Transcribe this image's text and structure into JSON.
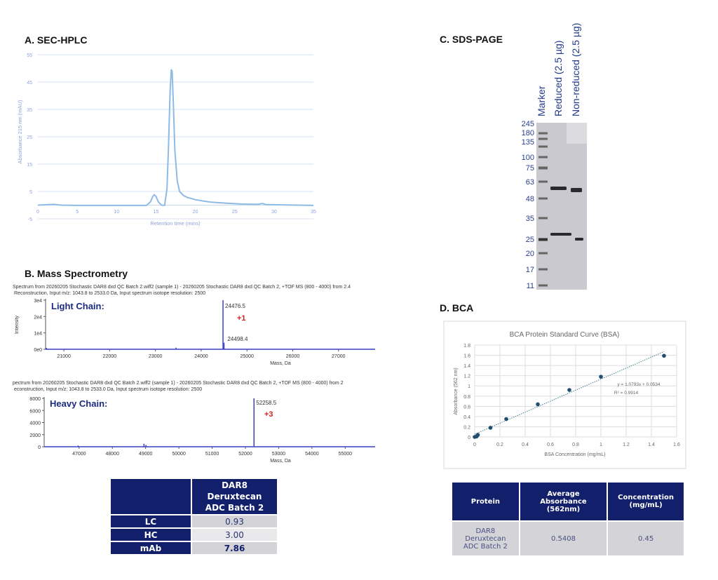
{
  "sections": {
    "a": "A. SEC-HPLC",
    "b": "B. Mass Spectrometry",
    "c": "C. SDS-PAGE",
    "d": "D. BCA"
  },
  "chart_data": [
    {
      "id": "sec-hplc",
      "type": "line",
      "xlabel": "Retention time (mins)",
      "ylabel": "Absorbance 215 nm (mAU)",
      "xlim": [
        0,
        35
      ],
      "ylim": [
        -5,
        55
      ],
      "xticks": [
        "0",
        "5",
        "10",
        "15",
        "20",
        "25",
        "30",
        "35"
      ],
      "yticks": [
        "55",
        "45",
        "35",
        "25",
        "15",
        "5",
        "-5"
      ],
      "grid": true,
      "color": "#8dbbe6",
      "x": [
        0,
        2,
        3,
        5,
        10,
        13.8,
        14.3,
        14.6,
        14.8,
        15.0,
        15.3,
        15.7,
        16.1,
        16.4,
        16.6,
        16.8,
        16.95,
        17.05,
        17.2,
        17.4,
        17.7,
        18.0,
        18.5,
        19,
        20,
        21,
        22,
        24,
        26,
        28,
        28.5,
        29,
        31,
        33,
        35
      ],
      "y": [
        0,
        0.3,
        0,
        -0.1,
        -0.1,
        -0.1,
        1.2,
        3.2,
        3.8,
        3.2,
        1.2,
        0,
        -0.1,
        6,
        22,
        42,
        49.5,
        49,
        38,
        20,
        9,
        5,
        3.5,
        2.8,
        2,
        1.5,
        1.1,
        0.7,
        0.4,
        0.3,
        0.6,
        0.2,
        0.1,
        0,
        -0.1
      ]
    },
    {
      "id": "light-chain",
      "type": "line",
      "header": [
        "Spectrum from 20260205 Stochastic DAR8 dxd QC Batch 2.wiff2 (sample 1) - 20260205 Stochastic DAR8 dxd QC Batch 2, +TOF MS (800 - 4000) from 2.4",
        "Reconstruction,  Input m/z: 1043.8 to 2533.0 Da, Input spectrum isotope resolution: 2500"
      ],
      "title": "Light Chain:",
      "xlabel": "Mass, Da",
      "ylabel": "Intensity",
      "xlim": [
        20600,
        27800
      ],
      "ylim": [
        0,
        30000
      ],
      "xticks": [
        "21000",
        "22000",
        "23000",
        "24000",
        "25000",
        "26000",
        "27000"
      ],
      "yticks": [
        "3e4",
        "2e4",
        "1e4",
        "0e0"
      ],
      "color": "#3a3fc4",
      "peaks": [
        {
          "x": 20620,
          "y": 800
        },
        {
          "x": 23450,
          "y": 1000
        },
        {
          "x": 24476.5,
          "y": 30000
        },
        {
          "x": 24498.4,
          "y": 4000
        }
      ],
      "peak_labels": [
        "24476.5",
        "24498.4"
      ],
      "annotation": "+1"
    },
    {
      "id": "heavy-chain",
      "type": "line",
      "header": [
        "pectrum from 20260205 Stochastic DAR8 dxd QC Batch 2.wiff2 (sample 1) - 20260205 Stochastic DAR8 dxd QC Batch 2, +TOF MS (800 - 4000) from 2",
        "econstruction,  Input m/z: 1043.8 to 2533.0 Da, Input spectrum isotope resolution: 2500"
      ],
      "title": "Heavy Chain:",
      "xlabel": "Mass, Da",
      "xlim": [
        45950,
        55900
      ],
      "ylim": [
        0,
        8000
      ],
      "xticks": [
        "47000",
        "48000",
        "49000",
        "50000",
        "51000",
        "52000",
        "53000",
        "54000",
        "55000"
      ],
      "yticks": [
        "8000",
        "6000",
        "4000",
        "2000",
        "0"
      ],
      "color": "#3a3fc4",
      "peaks": [
        {
          "x": 46970,
          "y": 200
        },
        {
          "x": 48950,
          "y": 500
        },
        {
          "x": 49010,
          "y": 300
        },
        {
          "x": 52258.5,
          "y": 8000
        }
      ],
      "peak_labels": [
        "52258.5"
      ],
      "annotation": "+3"
    },
    {
      "id": "bca",
      "type": "scatter",
      "title": "BCA Protein Standard Curve (BSA)",
      "xlabel": "BSA Concentration (mg/mL)",
      "ylabel": "Absorbance (562 nm)",
      "xlim": [
        0,
        1.6
      ],
      "ylim": [
        0,
        1.8
      ],
      "xticks": [
        "0",
        "0.2",
        "0.4",
        "0.6",
        "0.8",
        "1",
        "1.2",
        "1.4",
        "1.6"
      ],
      "yticks": [
        "0",
        "0.2",
        "0.4",
        "0.6",
        "0.8",
        "1",
        "1.2",
        "1.4",
        "1.6",
        "1.8"
      ],
      "grid": true,
      "color": "#1f4e6e",
      "x": [
        0,
        0.015,
        0.025,
        0.125,
        0.25,
        0.5,
        0.75,
        1.0,
        1.5
      ],
      "y": [
        0,
        0.01,
        0.04,
        0.18,
        0.35,
        0.64,
        0.92,
        1.18,
        1.59
      ],
      "trendline": {
        "slope": 1.0793,
        "intercept": 0.0534,
        "equation": "y = 1.0793x + 0.0534",
        "r2": "R² = 0.9914"
      }
    }
  ],
  "gel": {
    "lanes": [
      "Marker",
      "Reduced (2.5 µg)",
      "Non-reduced (2.5 µg)"
    ],
    "marker_kda": [
      "245",
      "180",
      "135",
      "100",
      "75",
      "63",
      "48",
      "35",
      "25",
      "20",
      "17",
      "11"
    ]
  },
  "dar_table": {
    "header": "DAR8 Deruxtecan ADC Batch 2",
    "rows": [
      {
        "label": "LC",
        "value": "0.93"
      },
      {
        "label": "HC",
        "value": "3.00"
      },
      {
        "label": "mAb",
        "value": "7.86"
      }
    ]
  },
  "bca_table": {
    "headers": [
      "Protein",
      "Average Absorbance (562nm)",
      "Concentration (mg/mL)"
    ],
    "row": [
      "DAR8 Deruxtecan ADC Batch 2",
      "0.5408",
      "0.45"
    ]
  }
}
